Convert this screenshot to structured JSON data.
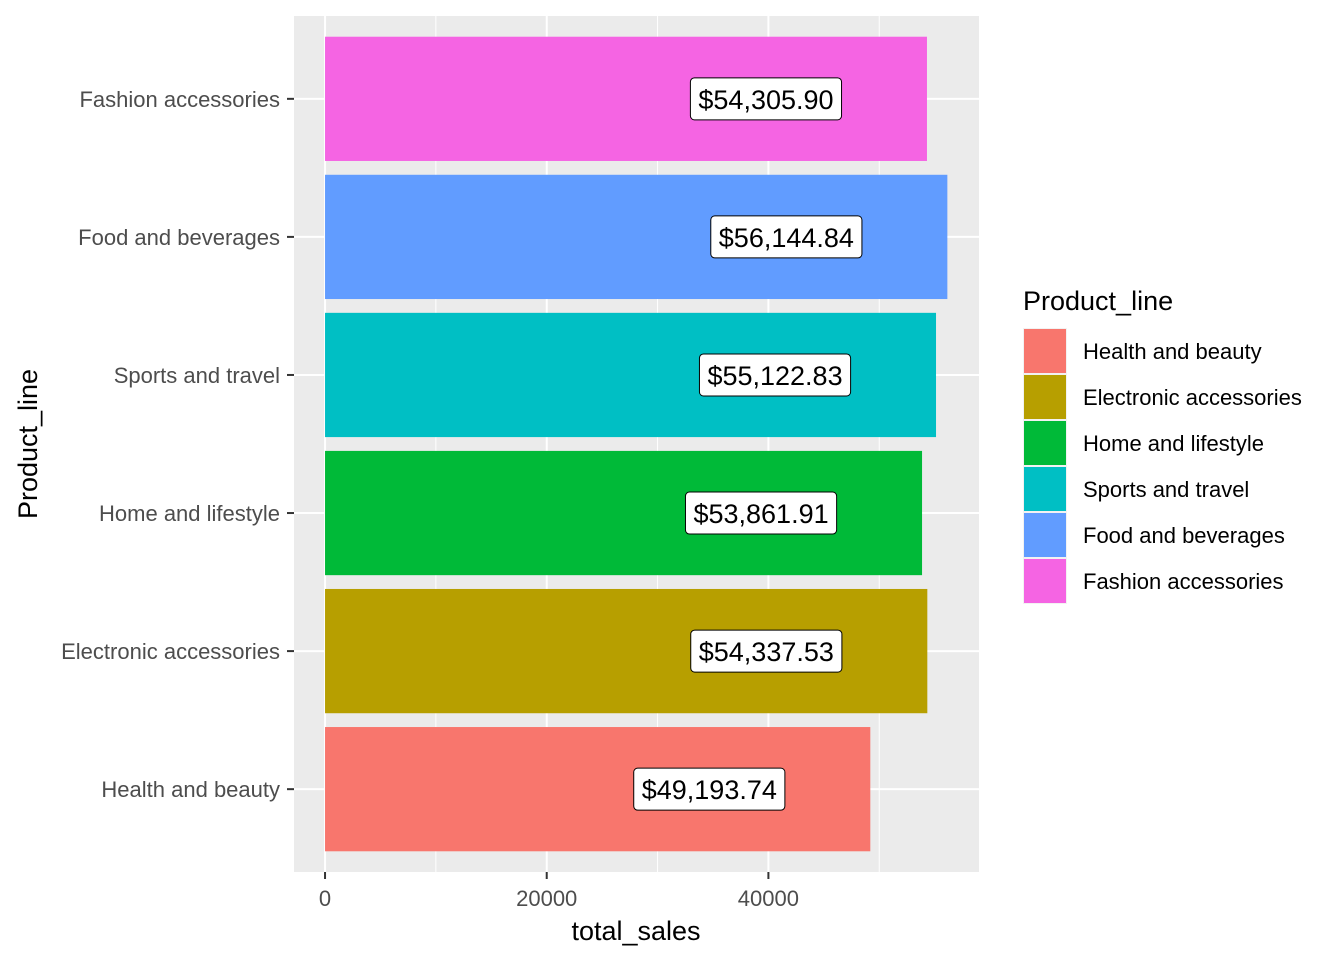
{
  "chart_data": {
    "type": "bar",
    "orientation": "horizontal",
    "xlabel": "total_sales",
    "ylabel": "Product_line",
    "xlim": [
      -2800,
      59000
    ],
    "x_ticks": [
      0,
      20000,
      40000
    ],
    "x_tick_labels": [
      "0",
      "20000",
      "40000"
    ],
    "grid": true,
    "legend_position": "right",
    "legend_title": "Product_line",
    "categories": [
      "Health and beauty",
      "Electronic accessories",
      "Home and lifestyle",
      "Sports and travel",
      "Food and beverages",
      "Fashion accessories"
    ],
    "values": [
      49193.74,
      54337.53,
      53861.91,
      55122.83,
      56144.84,
      54305.9
    ],
    "data_labels": [
      "$49,193.74",
      "$54,337.53",
      "$53,861.91",
      "$55,122.83",
      "$56,144.84",
      "$54,305.90"
    ],
    "colors": [
      "#F8766D",
      "#B79F00",
      "#00BA38",
      "#00BFC4",
      "#619CFF",
      "#F564E3"
    ],
    "legend": [
      {
        "label": "Health and beauty",
        "color": "#F8766D"
      },
      {
        "label": "Electronic accessories",
        "color": "#B79F00"
      },
      {
        "label": "Home and lifestyle",
        "color": "#00BA38"
      },
      {
        "label": "Sports and travel",
        "color": "#00BFC4"
      },
      {
        "label": "Food and beverages",
        "color": "#619CFF"
      },
      {
        "label": "Fashion accessories",
        "color": "#F564E3"
      }
    ]
  }
}
